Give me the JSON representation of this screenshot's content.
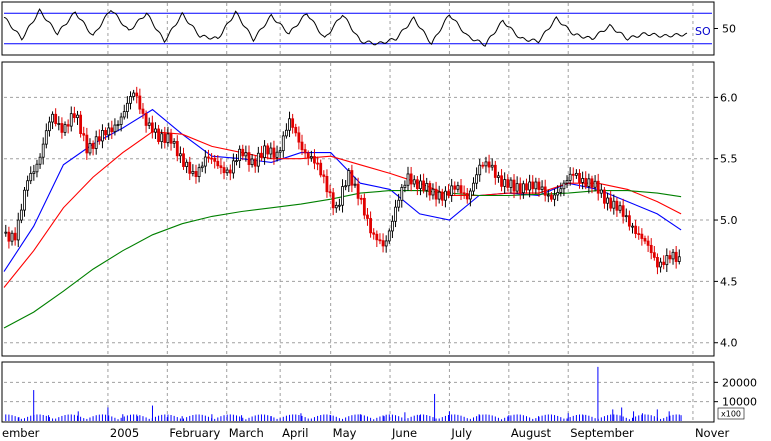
{
  "colors": {
    "background": "#ffffff",
    "frame": "#000000",
    "grid": "#a0a0a0",
    "up_candle": "#000000",
    "down_candle": "#e00000",
    "ma_short": "#0000ff",
    "ma_medium": "#ff0000",
    "ma_long": "#008000",
    "oscillator": "#000000",
    "oscillator_bands": "#0000ff",
    "volume": "#0000ff"
  },
  "chart_data": [
    {
      "type": "line",
      "panel": "oscillator",
      "label": "SO",
      "y_tick_labels": [
        "50"
      ],
      "y_ticks": [
        50
      ],
      "ylim": [
        0,
        100
      ],
      "bands": [
        80,
        20
      ],
      "x_range": [
        0,
        230
      ],
      "series": [
        {
          "name": "SO",
          "x": [
            0,
            6,
            12,
            18,
            24,
            30,
            36,
            42,
            48,
            54,
            60,
            66,
            72,
            78,
            84,
            90,
            96,
            102,
            108,
            114,
            120,
            126,
            132,
            138,
            144,
            150,
            156,
            162,
            168,
            174,
            180,
            186,
            192,
            198,
            204,
            210,
            216,
            222,
            228
          ],
          "values": [
            72,
            30,
            85,
            40,
            82,
            35,
            88,
            45,
            80,
            25,
            78,
            35,
            30,
            82,
            28,
            75,
            40,
            80,
            30,
            78,
            25,
            20,
            30,
            70,
            20,
            78,
            35,
            18,
            65,
            30,
            25,
            70,
            38,
            30,
            55,
            30,
            40,
            35,
            38
          ]
        }
      ],
      "color": "#000000"
    },
    {
      "type": "candlestick",
      "panel": "price",
      "y_tick_labels": [
        "4.0",
        "4.5",
        "5.0",
        "5.5",
        "6.0"
      ],
      "y_ticks": [
        4.0,
        4.5,
        5.0,
        5.5,
        6.0
      ],
      "ylim": [
        3.9,
        6.28
      ],
      "x_range": [
        0,
        230
      ],
      "x_tick_labels": [
        "ember",
        "2005",
        "February",
        "March",
        "April",
        "May",
        "June",
        "July",
        "August",
        "September",
        "Nover"
      ],
      "x_ticks": [
        -8,
        35,
        55,
        75,
        93,
        110,
        130,
        150,
        170,
        190,
        232
      ],
      "close_path": {
        "x": [
          0,
          4,
          8,
          12,
          16,
          20,
          24,
          28,
          32,
          36,
          40,
          44,
          48,
          52,
          56,
          60,
          64,
          68,
          72,
          76,
          80,
          84,
          88,
          92,
          96,
          100,
          104,
          108,
          112,
          116,
          120,
          124,
          128,
          132,
          136,
          140,
          144,
          148,
          152,
          156,
          160,
          164,
          168,
          172,
          176,
          180,
          184,
          188,
          192,
          196,
          200,
          204,
          208,
          212,
          216,
          220,
          224,
          228
        ],
        "values": [
          4.9,
          4.85,
          5.35,
          5.5,
          5.85,
          5.75,
          5.85,
          5.6,
          5.65,
          5.75,
          5.85,
          6.05,
          5.8,
          5.65,
          5.7,
          5.45,
          5.38,
          5.5,
          5.45,
          5.4,
          5.55,
          5.48,
          5.55,
          5.55,
          5.8,
          5.6,
          5.5,
          5.3,
          5.1,
          5.35,
          5.2,
          4.85,
          4.8,
          5.1,
          5.35,
          5.3,
          5.2,
          5.22,
          5.25,
          5.2,
          5.42,
          5.45,
          5.3,
          5.25,
          5.3,
          5.25,
          5.2,
          5.25,
          5.4,
          5.3,
          5.25,
          5.15,
          5.05,
          4.95,
          4.8,
          4.65,
          4.7,
          4.65
        ]
      },
      "up_color": "#000000",
      "down_color": "#e00000"
    },
    {
      "type": "line",
      "panel": "price-overlay",
      "series": [
        {
          "name": "",
          "color": "#0000ff",
          "x": [
            0,
            10,
            20,
            30,
            40,
            50,
            60,
            70,
            80,
            90,
            100,
            110,
            120,
            130,
            140,
            150,
            160,
            170,
            180,
            190,
            200,
            210,
            220,
            228
          ],
          "values": [
            4.58,
            4.95,
            5.45,
            5.62,
            5.75,
            5.9,
            5.7,
            5.52,
            5.5,
            5.47,
            5.55,
            5.55,
            5.3,
            5.25,
            5.05,
            5.0,
            5.2,
            5.22,
            5.2,
            5.3,
            5.25,
            5.15,
            5.05,
            4.92
          ]
        },
        {
          "name": "",
          "color": "#ff0000",
          "x": [
            0,
            10,
            20,
            30,
            40,
            50,
            60,
            70,
            80,
            90,
            100,
            110,
            120,
            130,
            140,
            150,
            160,
            170,
            180,
            190,
            200,
            210,
            220,
            228
          ],
          "values": [
            4.45,
            4.75,
            5.1,
            5.35,
            5.55,
            5.72,
            5.7,
            5.6,
            5.55,
            5.5,
            5.5,
            5.52,
            5.45,
            5.38,
            5.3,
            5.2,
            5.2,
            5.22,
            5.22,
            5.3,
            5.3,
            5.25,
            5.15,
            5.05
          ]
        },
        {
          "name": "",
          "color": "#008000",
          "x": [
            0,
            10,
            20,
            30,
            40,
            50,
            60,
            70,
            80,
            90,
            100,
            110,
            120,
            130,
            140,
            150,
            160,
            170,
            180,
            190,
            200,
            210,
            220,
            228
          ],
          "values": [
            4.12,
            4.25,
            4.42,
            4.6,
            4.75,
            4.88,
            4.97,
            5.03,
            5.07,
            5.1,
            5.13,
            5.17,
            5.22,
            5.24,
            5.24,
            5.22,
            5.2,
            5.2,
            5.21,
            5.22,
            5.24,
            5.24,
            5.22,
            5.19
          ]
        }
      ]
    },
    {
      "type": "bar",
      "panel": "volume",
      "y_tick_labels": [
        "10000",
        "20000"
      ],
      "y_ticks": [
        10000,
        20000
      ],
      "ylim": [
        0,
        30000
      ],
      "unit_label": "x100",
      "x_range": [
        0,
        230
      ],
      "bars": {
        "x": [
          5,
          10,
          15,
          25,
          35,
          40,
          45,
          50,
          55,
          60,
          70,
          80,
          90,
          100,
          110,
          120,
          128,
          135,
          140,
          145,
          150,
          160,
          170,
          180,
          190,
          195,
          200,
          205,
          208,
          212,
          215,
          220,
          224,
          228
        ],
        "values": [
          2000,
          16000,
          3000,
          5000,
          7000,
          3500,
          2500,
          8000,
          2000,
          2500,
          3500,
          3000,
          2500,
          4000,
          3000,
          3500,
          2500,
          4500,
          3000,
          14000,
          5000,
          3500,
          3000,
          2500,
          4000,
          3000,
          28000,
          6000,
          7000,
          5000,
          4000,
          6000,
          5000,
          3000
        ]
      },
      "color": "#0000ff"
    }
  ]
}
